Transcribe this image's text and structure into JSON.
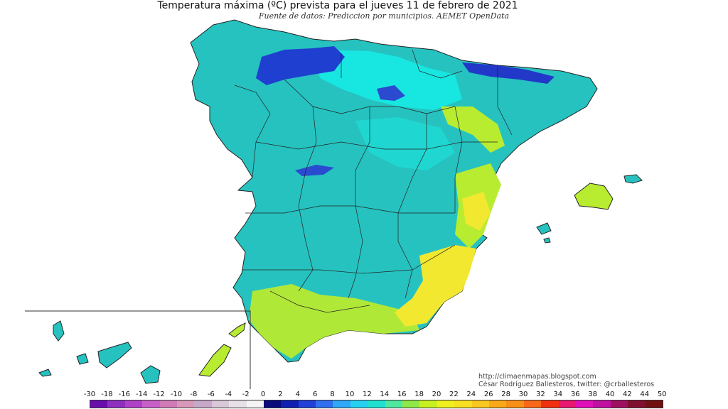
{
  "header": {
    "title": "Temperatura máxima (ºC) prevista para el jueves 11 de febrero de 2021",
    "subtitle": "Fuente de datos: Prediccion por municipios. AEMET OpenData"
  },
  "credits": {
    "url": "http://climaenmapas.blogspot.com",
    "author": "César Rodríguez Ballesteros, twitter: @crballesteros"
  },
  "legend": {
    "ticks": [
      "-30",
      "-18",
      "-16",
      "-14",
      "-12",
      "-10",
      "-8",
      "-6",
      "-4",
      "-2",
      "0",
      "2",
      "4",
      "6",
      "8",
      "10",
      "12",
      "14",
      "16",
      "18",
      "20",
      "22",
      "24",
      "26",
      "28",
      "30",
      "32",
      "34",
      "36",
      "38",
      "40",
      "42",
      "44",
      "50"
    ],
    "colors": [
      "#6a0dad",
      "#8f2fc0",
      "#b040c8",
      "#c860c8",
      "#d07ab8",
      "#d898b8",
      "#c8a8c8",
      "#d8c8d8",
      "#e8e0e8",
      "#f4f4f4",
      "#0a0a7a",
      "#1020b0",
      "#2040d8",
      "#3070f0",
      "#30a8f8",
      "#28d0f0",
      "#20e0d0",
      "#50e8a0",
      "#90e848",
      "#c8f020",
      "#f0f020",
      "#f8e020",
      "#f8c820",
      "#f8a818",
      "#f89018",
      "#f86818",
      "#f03010",
      "#e81870",
      "#e010b8",
      "#c010a0",
      "#a01060",
      "#801030",
      "#701010"
    ]
  },
  "colors": {
    "sea": "#ffffff",
    "base_land": "#26c2c0",
    "mountain_cold": "#1f3fd0",
    "cool": "#18e6e0",
    "warm": "#b8ec30",
    "hot": "#f2e830",
    "border": "#222222"
  }
}
